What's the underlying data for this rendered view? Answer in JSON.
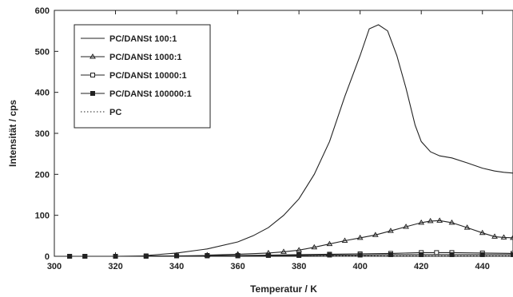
{
  "chart_data": {
    "type": "line",
    "xlabel": "Temperatur / K",
    "ylabel": "Intensität / cps",
    "xlim": [
      300,
      450
    ],
    "ylim": [
      0,
      600
    ],
    "xticks": [
      300,
      320,
      340,
      360,
      380,
      400,
      420,
      440
    ],
    "yticks": [
      0,
      100,
      200,
      300,
      400,
      500,
      600
    ],
    "legend_position": "top-left",
    "grid": false,
    "series": [
      {
        "name": "PC/DANSt 100:1",
        "marker": "none",
        "dash": "solid",
        "x": [
          330,
          340,
          350,
          360,
          365,
          370,
          375,
          380,
          385,
          390,
          395,
          400,
          403,
          406,
          409,
          412,
          415,
          418,
          420,
          423,
          426,
          430,
          435,
          440,
          444,
          447,
          450
        ],
        "y": [
          2,
          8,
          18,
          35,
          50,
          70,
          100,
          140,
          200,
          280,
          390,
          490,
          555,
          565,
          550,
          490,
          410,
          320,
          280,
          255,
          245,
          240,
          228,
          215,
          208,
          205,
          203
        ]
      },
      {
        "name": "PC/DANSt 1000:1",
        "marker": "triangle",
        "dash": "solid",
        "x": [
          350,
          360,
          370,
          375,
          380,
          385,
          390,
          395,
          400,
          405,
          410,
          415,
          420,
          423,
          426,
          430,
          435,
          440,
          444,
          447,
          450
        ],
        "y": [
          3,
          5,
          8,
          11,
          15,
          22,
          30,
          38,
          45,
          52,
          62,
          72,
          82,
          86,
          87,
          82,
          70,
          57,
          48,
          46,
          45
        ]
      },
      {
        "name": "PC/DANSt 10000:1",
        "marker": "square-open",
        "dash": "solid",
        "x": [
          305,
          310,
          320,
          330,
          340,
          350,
          360,
          370,
          380,
          390,
          400,
          410,
          420,
          425,
          430,
          440,
          450
        ],
        "y": [
          0,
          0,
          0,
          1,
          1,
          2,
          2,
          3,
          4,
          5,
          6,
          7,
          9,
          9,
          9,
          8,
          7
        ]
      },
      {
        "name": "PC/DANSt 100000:1",
        "marker": "square-filled",
        "dash": "solid",
        "x": [
          305,
          310,
          320,
          330,
          340,
          350,
          360,
          370,
          380,
          390,
          400,
          410,
          420,
          430,
          440,
          450
        ],
        "y": [
          0,
          0,
          0,
          0,
          1,
          1,
          1,
          2,
          2,
          3,
          3,
          4,
          4,
          4,
          4,
          4
        ]
      },
      {
        "name": "PC",
        "marker": "none",
        "dash": "dotted",
        "x": [
          300,
          320,
          340,
          360,
          380,
          400,
          420,
          440,
          450
        ],
        "y": [
          0,
          0,
          0,
          1,
          1,
          1,
          1,
          1,
          1
        ]
      }
    ]
  }
}
